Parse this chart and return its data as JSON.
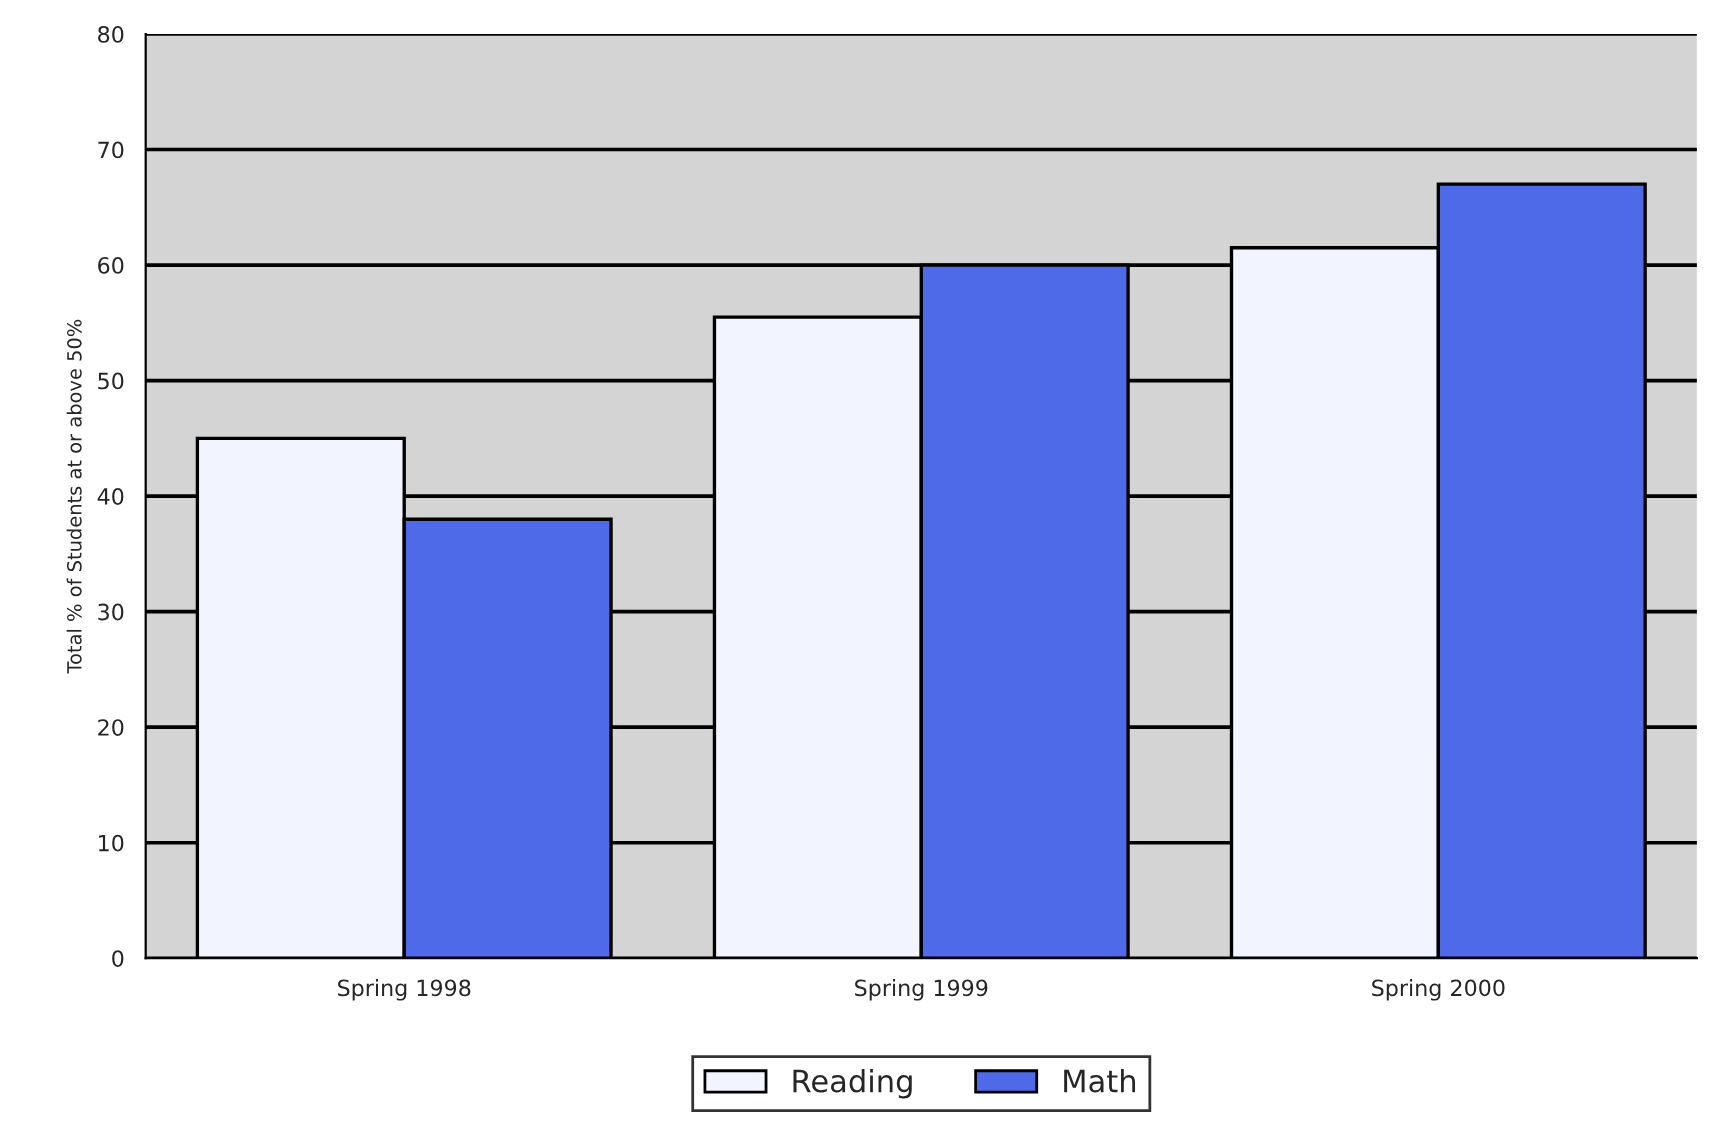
{
  "chart_data": {
    "type": "bar",
    "ylabel": "Total % of Students at or above 50%",
    "categories": [
      "Spring 1998",
      "Spring 1999",
      "Spring 2000"
    ],
    "series": [
      {
        "name": "Reading",
        "color": "#f2f4ff",
        "values": [
          45,
          55.5,
          61.5
        ]
      },
      {
        "name": "Math",
        "color": "#4f6ae8",
        "values": [
          38,
          60,
          67
        ]
      }
    ],
    "ylim": [
      0,
      80
    ],
    "yticks": [
      0,
      10,
      20,
      30,
      40,
      50,
      60,
      70,
      80
    ],
    "grid": "y",
    "legend": "bottom"
  }
}
